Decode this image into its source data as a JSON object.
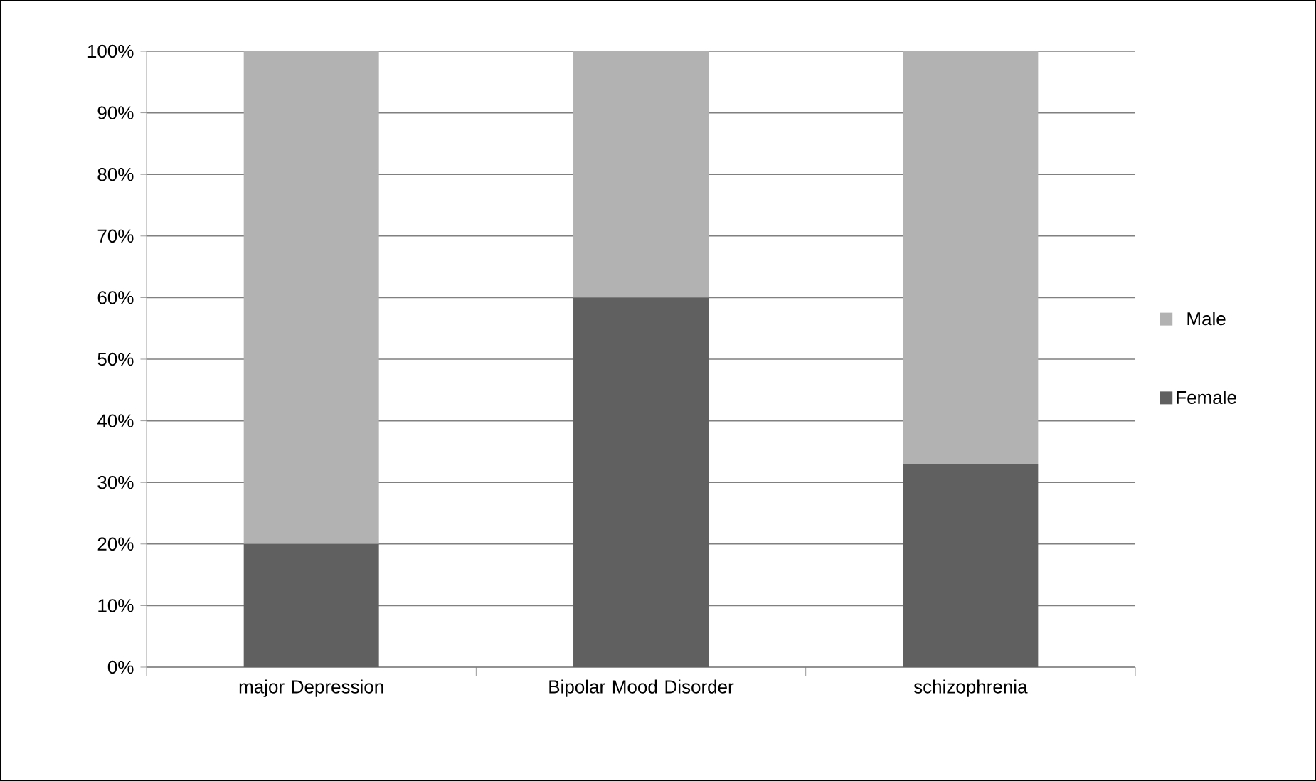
{
  "chart_data": {
    "type": "bar",
    "stacked": true,
    "categories": [
      "major Depression",
      "Bipolar Mood Disorder",
      "schizophrenia"
    ],
    "series": [
      {
        "name": "Female",
        "color": "#606060",
        "values": [
          20,
          60,
          33
        ]
      },
      {
        "name": "Male",
        "color": "#b2b2b2",
        "values": [
          80,
          40,
          67
        ]
      }
    ],
    "ylim": [
      0,
      100
    ],
    "yticks": [
      {
        "value": 0,
        "label": "0%"
      },
      {
        "value": 10,
        "label": "10%"
      },
      {
        "value": 20,
        "label": "20%"
      },
      {
        "value": 30,
        "label": "30%"
      },
      {
        "value": 40,
        "label": "40%"
      },
      {
        "value": 50,
        "label": "50%"
      },
      {
        "value": 60,
        "label": "60%"
      },
      {
        "value": 70,
        "label": "70%"
      },
      {
        "value": 80,
        "label": "80%"
      },
      {
        "value": 90,
        "label": "90%"
      },
      {
        "value": 100,
        "label": "100%"
      }
    ],
    "grid": "y",
    "legend": "right"
  }
}
